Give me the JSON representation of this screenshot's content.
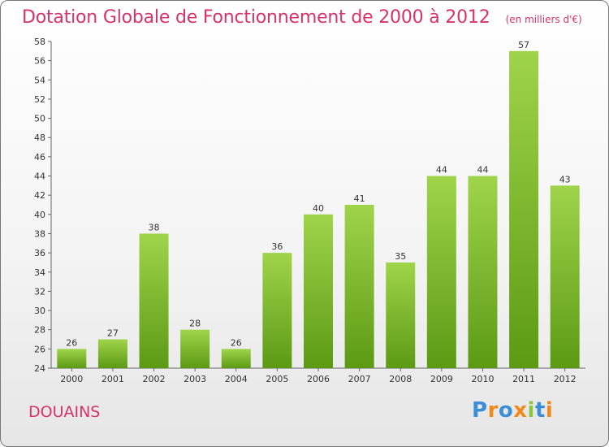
{
  "title": "Dotation Globale de Fonctionnement de 2000 à 2012",
  "subtitle": "(en milliers d'€)",
  "location": "DOUAINS",
  "logo": {
    "text": "Proxiti",
    "colors": [
      "#3b8fd9",
      "#f08a1c",
      "#3b8fd9",
      "#f08a1c",
      "#8cc63f",
      "#3b8fd9",
      "#f08a1c"
    ]
  },
  "colors": {
    "bar_light": "#9fd44a",
    "bar_dark": "#5c9a14",
    "title": "#d6336c"
  },
  "chart_data": {
    "type": "bar",
    "categories": [
      "2000",
      "2001",
      "2002",
      "2003",
      "2004",
      "2005",
      "2006",
      "2007",
      "2008",
      "2009",
      "2010",
      "2011",
      "2012"
    ],
    "values": [
      26,
      27,
      38,
      28,
      26,
      36,
      40,
      41,
      35,
      44,
      44,
      57,
      43
    ],
    "ylim": [
      24,
      58
    ],
    "yticks": [
      24,
      26,
      28,
      30,
      32,
      34,
      36,
      38,
      40,
      42,
      44,
      46,
      48,
      50,
      52,
      54,
      56,
      58
    ],
    "grid": false
  }
}
